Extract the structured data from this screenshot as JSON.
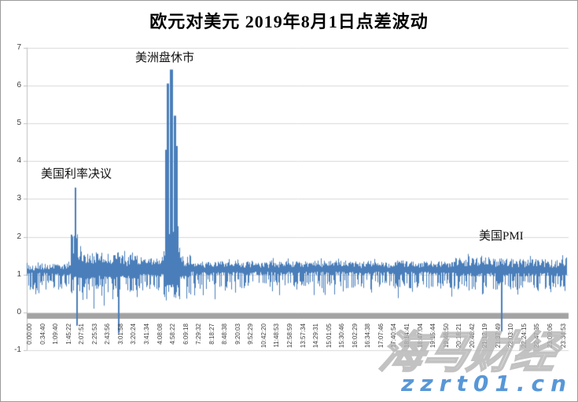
{
  "watermark": {
    "brand": "海马财经",
    "site": "zzrt01.cn",
    "brand_color": "#b3b3b3",
    "site_color": "#4a8fd4"
  },
  "chart_data": {
    "type": "line",
    "title": "欧元对美元 2019年8月1日点差波动",
    "xlabel": "",
    "ylabel": "",
    "series_color": "#4a7eba",
    "grid_color": "#d9d9d9",
    "axis_color": "#bfbfbf",
    "zero_bar_color": "#a3a3a3",
    "grid": true,
    "legend": false,
    "y_axis": {
      "min": -1,
      "max": 7,
      "step": 1,
      "ticks": [
        7,
        6,
        5,
        4,
        3,
        2,
        1,
        0,
        -1
      ]
    },
    "x_ticks": [
      "0:00:00",
      "0:34:40",
      "1:09:40",
      "1:45:22",
      "2:07:51",
      "2:25:53",
      "2:43:56",
      "3:01:58",
      "3:20:24",
      "3:41:34",
      "4:08:08",
      "4:58:22",
      "6:09:18",
      "7:29:32",
      "8:18:27",
      "8:48:38",
      "9:20:03",
      "9:52:29",
      "10:42:20",
      "11:48:53",
      "12:58:59",
      "13:57:34",
      "14:29:31",
      "15:01:05",
      "15:30:46",
      "16:02:29",
      "16:34:38",
      "17:07:46",
      "17:40:54",
      "18:14:41",
      "18:47:04",
      "19:15:44",
      "19:46:50",
      "20:16:21",
      "20:46:42",
      "21:12:19",
      "21:37:49",
      "22:03:10",
      "22:24:15",
      "22:47:35",
      "23:09:06",
      "23:34:53"
    ],
    "annotations": [
      {
        "text": "美国利率决议",
        "near_time": "1:50:00",
        "peak_value": 3.3
      },
      {
        "text": "美洲盘休市",
        "near_time": "5:05:00",
        "peak_value": 6.4
      },
      {
        "text": "美国PMI",
        "near_time": "21:45:00",
        "peak_value": 2.0
      }
    ],
    "band_profile": [
      {
        "from": 0.0,
        "to": 0.08,
        "lo": 0.95,
        "hi": 1.32
      },
      {
        "from": 0.08,
        "to": 0.094,
        "lo": 0.85,
        "hi": 2.3,
        "jag": 0.9
      },
      {
        "from": 0.094,
        "to": 0.105,
        "lo": 0.85,
        "hi": 1.85,
        "jag": 0.5
      },
      {
        "from": 0.105,
        "to": 0.206,
        "lo": 0.88,
        "hi": 1.62,
        "jag": 0.35
      },
      {
        "from": 0.206,
        "to": 0.252,
        "lo": 0.92,
        "hi": 1.45
      },
      {
        "from": 0.252,
        "to": 0.283,
        "lo": 0.65,
        "hi": 2.4,
        "jag": 1.1
      },
      {
        "from": 0.283,
        "to": 0.303,
        "lo": 0.88,
        "hi": 1.55,
        "jag": 0.3
      },
      {
        "from": 0.303,
        "to": 0.787,
        "lo": 0.98,
        "hi": 1.38
      },
      {
        "from": 0.787,
        "to": 0.888,
        "lo": 0.95,
        "hi": 1.5,
        "jag": 0.25
      },
      {
        "from": 0.888,
        "to": 1.001,
        "lo": 0.95,
        "hi": 1.45,
        "jag": 0.22
      }
    ],
    "up_spikes": [
      {
        "x": 0.09,
        "top": 3.3,
        "base": 1.3,
        "w": 2
      },
      {
        "x": 0.2569,
        "top": 4.3,
        "base": 0.95,
        "w": 2
      },
      {
        "x": 0.2605,
        "top": 6.05,
        "base": 0.9,
        "w": 3
      },
      {
        "x": 0.267,
        "top": 6.42,
        "base": 0.9,
        "w": 4
      },
      {
        "x": 0.2728,
        "top": 5.2,
        "base": 0.9,
        "w": 3
      },
      {
        "x": 0.277,
        "top": 4.4,
        "base": 0.9,
        "w": 2
      }
    ],
    "down_spikes": [
      {
        "x": 0.0929,
        "bot": -0.35,
        "w": 2
      },
      {
        "x": 0.1234,
        "bot": 0.1,
        "w": 1
      },
      {
        "x": 0.1422,
        "bot": 0.18,
        "w": 1
      },
      {
        "x": 0.1698,
        "bot": -0.55,
        "w": 2
      },
      {
        "x": 0.347,
        "bot": 0.35,
        "w": 1
      },
      {
        "x": 0.6851,
        "bot": 0.38,
        "w": 1
      },
      {
        "x": 0.7838,
        "bot": 0.42,
        "w": 1
      },
      {
        "x": 0.8766,
        "bot": -0.5,
        "w": 2
      }
    ],
    "noise_seed": 20190801
  }
}
